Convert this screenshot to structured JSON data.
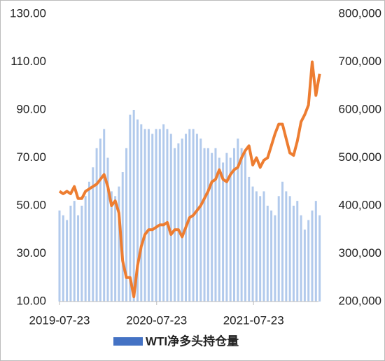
{
  "chart_data": {
    "type": "bar-line",
    "x": [
      "2019-07-23",
      "2019-08-06",
      "2019-08-20",
      "2019-09-03",
      "2019-09-17",
      "2019-10-01",
      "2019-10-15",
      "2019-10-29",
      "2019-11-12",
      "2019-11-26",
      "2019-12-10",
      "2019-12-24",
      "2020-01-07",
      "2020-01-21",
      "2020-02-04",
      "2020-02-18",
      "2020-03-03",
      "2020-03-17",
      "2020-03-31",
      "2020-04-14",
      "2020-04-28",
      "2020-05-12",
      "2020-05-26",
      "2020-06-09",
      "2020-06-23",
      "2020-07-07",
      "2020-07-21",
      "2020-08-04",
      "2020-08-18",
      "2020-09-01",
      "2020-09-15",
      "2020-09-29",
      "2020-10-13",
      "2020-10-27",
      "2020-11-10",
      "2020-11-24",
      "2020-12-08",
      "2020-12-22",
      "2021-01-05",
      "2021-01-19",
      "2021-02-02",
      "2021-02-16",
      "2021-03-02",
      "2021-03-16",
      "2021-03-30",
      "2021-04-13",
      "2021-04-27",
      "2021-05-11",
      "2021-05-25",
      "2021-06-08",
      "2021-06-22",
      "2021-07-06",
      "2021-07-20",
      "2021-08-03",
      "2021-08-17",
      "2021-08-31",
      "2021-09-14",
      "2021-09-28",
      "2021-10-12",
      "2021-10-26",
      "2021-11-09",
      "2021-11-23",
      "2021-12-07",
      "2021-12-21",
      "2022-01-04",
      "2022-01-18",
      "2022-02-01",
      "2022-02-15",
      "2022-03-01",
      "2022-03-15",
      "2022-03-29"
    ],
    "series": [
      {
        "name": "WTI净多头持仓量",
        "kind": "bar",
        "axis": "y2",
        "color": "#7fa7df",
        "values": [
          390000,
          380000,
          370000,
          400000,
          410000,
          380000,
          400000,
          420000,
          450000,
          480000,
          520000,
          540000,
          560000,
          500000,
          430000,
          420000,
          440000,
          470000,
          520000,
          590000,
          600000,
          580000,
          570000,
          560000,
          560000,
          550000,
          560000,
          560000,
          570000,
          560000,
          550000,
          520000,
          530000,
          540000,
          550000,
          560000,
          560000,
          550000,
          540000,
          520000,
          520000,
          510000,
          520000,
          500000,
          490000,
          510000,
          500000,
          520000,
          540000,
          520000,
          510000,
          460000,
          440000,
          430000,
          420000,
          430000,
          400000,
          390000,
          380000,
          420000,
          450000,
          430000,
          420000,
          400000,
          410000,
          380000,
          350000,
          370000,
          390000,
          410000,
          380000
        ]
      },
      {
        "kind": "line",
        "axis": "y",
        "color": "#ed7d31",
        "values": [
          56,
          55,
          56,
          55,
          58,
          53,
          53,
          56,
          57,
          58,
          59,
          61,
          63,
          58,
          50,
          52,
          47,
          27,
          20,
          20,
          12,
          25,
          33,
          38,
          40,
          40,
          41,
          42,
          42,
          43,
          38,
          40,
          40,
          37,
          41,
          45,
          46,
          48,
          50,
          53,
          56,
          60,
          61,
          65,
          61,
          60,
          63,
          65,
          66,
          70,
          73,
          75,
          67,
          70,
          66,
          69,
          70,
          75,
          80,
          84,
          84,
          78,
          72,
          71,
          77,
          85,
          88,
          92,
          110,
          96,
          105
        ]
      }
    ],
    "xticks": [
      "2019-07-23",
      "2020-07-23",
      "2021-07-23"
    ],
    "ylim": [
      10,
      130
    ],
    "yticks": [
      {
        "value": 10,
        "label": "10.00"
      },
      {
        "value": 30,
        "label": "30.00"
      },
      {
        "value": 50,
        "label": "50.00"
      },
      {
        "value": 70,
        "label": "70.00"
      },
      {
        "value": 90,
        "label": "90.00"
      },
      {
        "value": 110,
        "label": "110.00"
      },
      {
        "value": 130,
        "label": "130.00"
      }
    ],
    "y2lim": [
      200000,
      800000
    ],
    "y2ticks": [
      {
        "value": 200000,
        "label": "200,000"
      },
      {
        "value": 300000,
        "label": "300,000"
      },
      {
        "value": 400000,
        "label": "400,000"
      },
      {
        "value": 500000,
        "label": "500,000"
      },
      {
        "value": 600000,
        "label": "600,000"
      },
      {
        "value": 700000,
        "label": "700,000"
      },
      {
        "value": 800000,
        "label": "800,000"
      }
    ],
    "legend": "bottom"
  }
}
